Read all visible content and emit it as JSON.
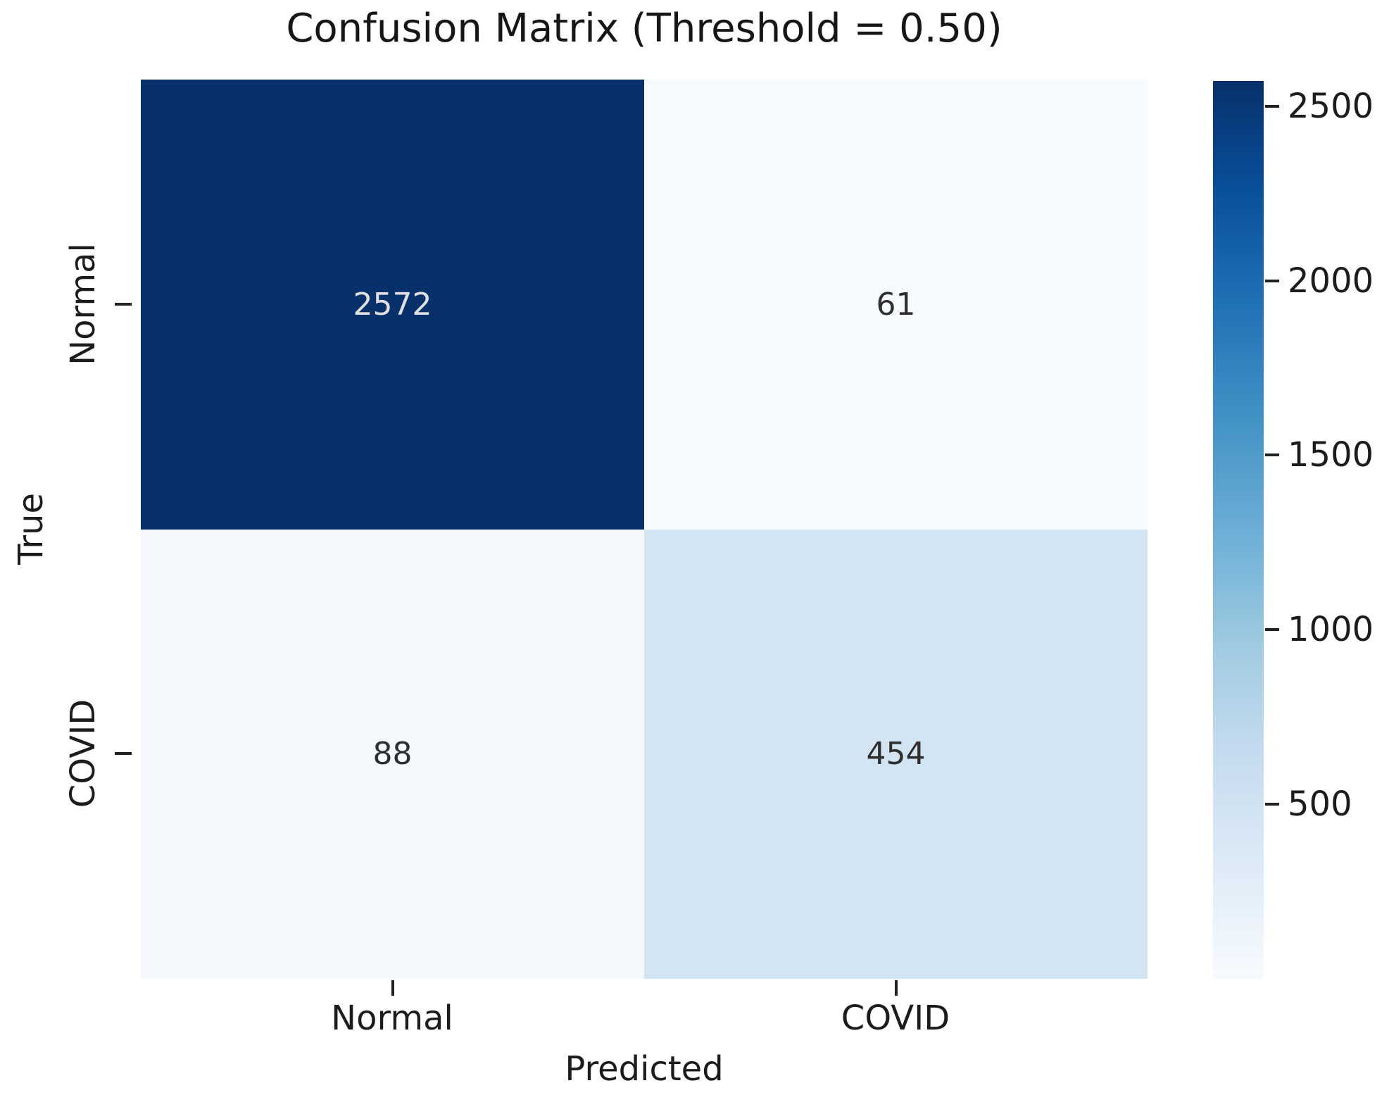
{
  "figure": {
    "background": "#ffffff"
  },
  "chart_data": {
    "type": "heatmap",
    "title": "Confusion Matrix (Threshold = 0.50)",
    "xlabel": "Predicted",
    "ylabel": "True",
    "x_categories": [
      "Normal",
      "COVID"
    ],
    "y_categories": [
      "Normal",
      "COVID"
    ],
    "values": [
      [
        2572,
        61
      ],
      [
        88,
        454
      ]
    ],
    "cell_colors": [
      [
        "#08306b",
        "#f7fbff"
      ],
      [
        "#f5f9fe",
        "#d3e4f3"
      ]
    ],
    "cell_text_colors": [
      [
        "#e0e0e0",
        "#2e2e2e"
      ],
      [
        "#2e2e2e",
        "#2e2e2e"
      ]
    ],
    "colormap": "Blues",
    "grid": false,
    "legend_position": "right-colorbar",
    "colorbar": {
      "ticks": [
        500,
        1000,
        1500,
        2000,
        2500
      ],
      "range": [
        0,
        2572
      ],
      "gradient": [
        "#f7fbff",
        "#deebf7",
        "#c6dbef",
        "#9ecae1",
        "#6baed6",
        "#4292c6",
        "#2171b5",
        "#08519c",
        "#08306b"
      ]
    }
  }
}
